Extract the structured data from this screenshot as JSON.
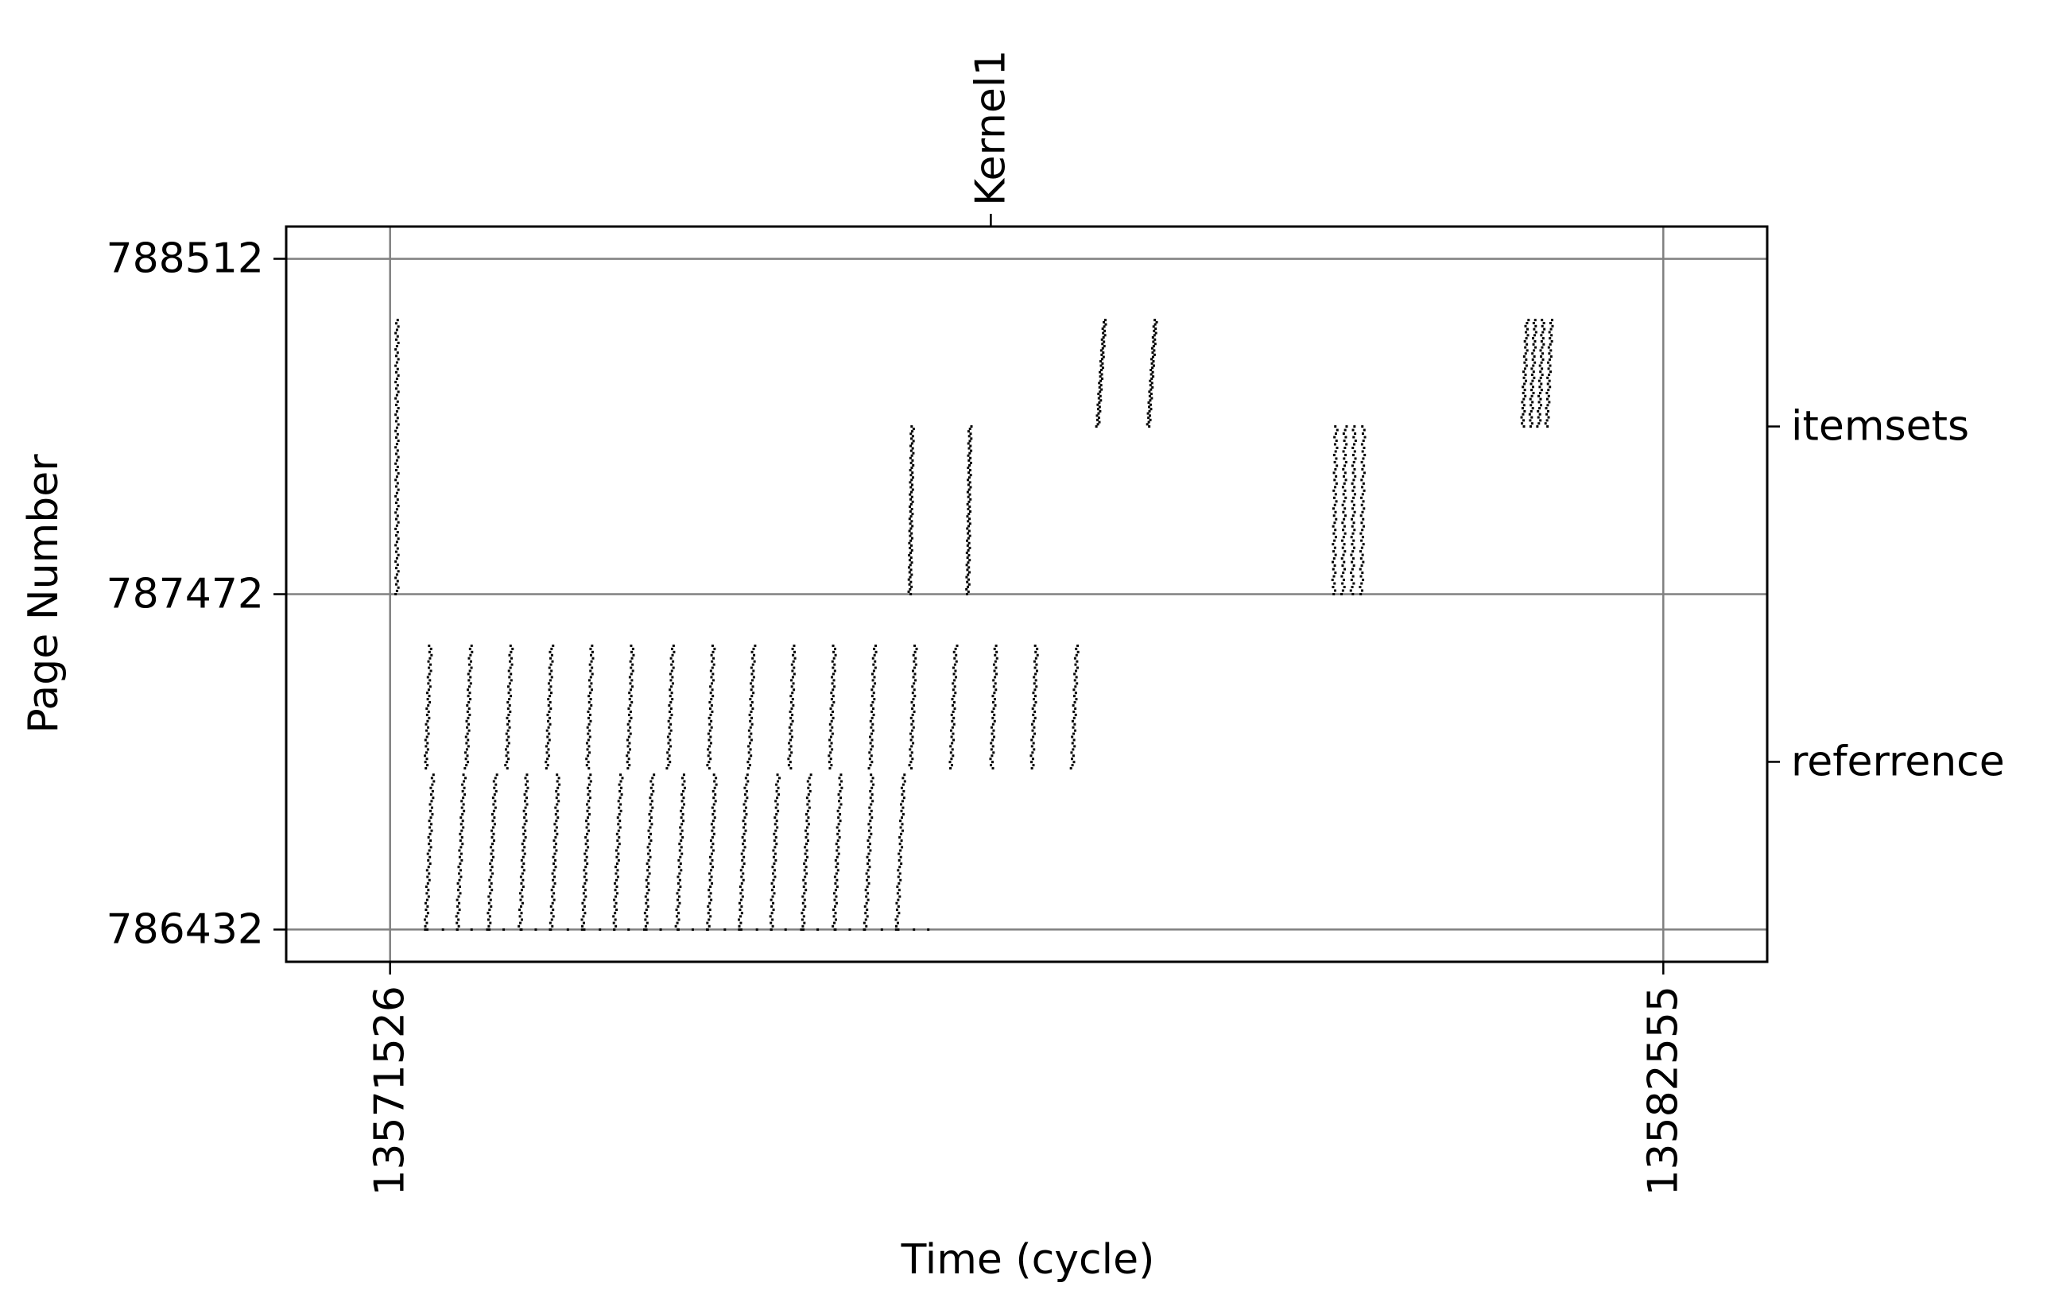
{
  "chart_data": {
    "type": "scatter",
    "title": "",
    "xlabel": "Time (cycle)",
    "ylabel": "Page Number",
    "xlim": [
      13570626,
      13583455
    ],
    "ylim": [
      786332,
      788612
    ],
    "x_ticks": [
      13571526,
      13582555
    ],
    "y_ticks": [
      786432,
      787472,
      788512
    ],
    "grid": true,
    "top_axis": {
      "ticks": [
        {
          "x": 13576730,
          "label": "Kernel1"
        }
      ]
    },
    "right_axis": {
      "ticks": [
        {
          "y": 787992,
          "label": "itemsets"
        },
        {
          "y": 786952,
          "label": "referrence"
        }
      ]
    },
    "colors": {
      "points": "#000000",
      "grid": "#808080",
      "frame": "#000000"
    },
    "point_groups": [
      {
        "name": "itemsets-initial-column",
        "x_start": 13571586,
        "x_end": 13571586,
        "y_min": 787472,
        "y_max": 788322,
        "count": 85,
        "tilt": 0
      },
      {
        "name": "referrence-upper-band",
        "x_start": 13571836,
        "x_end": 13577436,
        "period": 350,
        "y_min": 786932,
        "y_max": 787312,
        "count": 40,
        "tilt": 40
      },
      {
        "name": "referrence-lower-band",
        "x_start": 13571836,
        "x_end": 13575996,
        "period": 272,
        "y_min": 786432,
        "y_max": 786912,
        "count": 48,
        "tilt": 60
      },
      {
        "name": "referrence-baseline",
        "x_start": 13571836,
        "x_end": 13576256,
        "period": 136,
        "y_min": 786432,
        "y_max": 786432,
        "count": 1,
        "tilt": 0
      },
      {
        "name": "itemsets-burst-1",
        "x_start": 13576030,
        "x_end": 13576556,
        "period": 500,
        "y_min": 787472,
        "y_max": 787992,
        "count": 70,
        "tilt": 20
      },
      {
        "name": "itemsets-burst-2",
        "x_start": 13577656,
        "x_end": 13578156,
        "period": 440,
        "y_min": 787992,
        "y_max": 788322,
        "count": 50,
        "tilt": 60
      },
      {
        "name": "itemsets-burst-3",
        "x_start": 13579700,
        "x_end": 13580000,
        "period": 80,
        "y_min": 787472,
        "y_max": 787992,
        "count": 48,
        "tilt": 20
      },
      {
        "name": "itemsets-burst-4",
        "x_start": 13581336,
        "x_end": 13581556,
        "period": 70,
        "y_min": 787992,
        "y_max": 788322,
        "count": 36,
        "tilt": 40
      }
    ]
  }
}
